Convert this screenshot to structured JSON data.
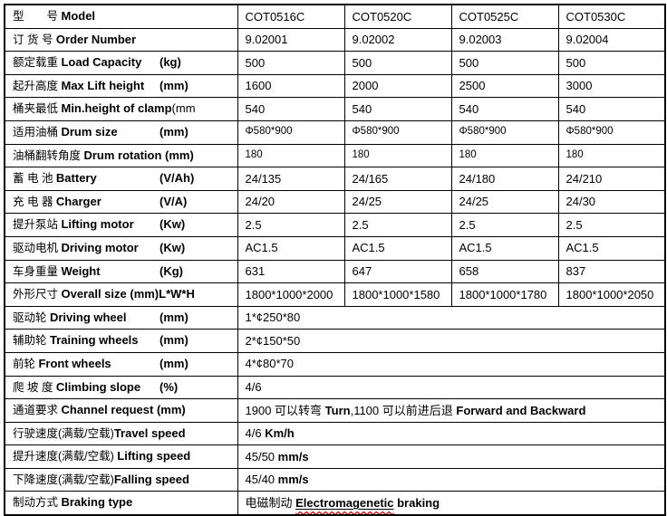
{
  "table": {
    "rows": [
      {
        "label": {
          "zh": "型　　号 ",
          "en": "Model"
        },
        "cells": [
          "COT0516C",
          "COT0520C",
          "COT0525C",
          "COT0530C"
        ]
      },
      {
        "label": {
          "zh": "订 货 号 ",
          "en": "Order Number"
        },
        "cells": [
          "9.02001",
          "9.02002",
          "9.02003",
          "9.02004"
        ]
      },
      {
        "label": {
          "zh": "额定载重 ",
          "en": "Load Capacity",
          "unit": "(kg)"
        },
        "cells": [
          "500",
          "500",
          "500",
          "500"
        ]
      },
      {
        "label": {
          "zh": "起升高度 ",
          "en": "Max Lift height",
          "unit": "(mm)"
        },
        "cells": [
          "1600",
          "2000",
          "2500",
          "3000"
        ]
      },
      {
        "label": {
          "zh": "桶夹最低 ",
          "en": "Min.height of clamp",
          "tail": "(mm"
        },
        "cells": [
          "540",
          "540",
          "540",
          "540"
        ]
      },
      {
        "label": {
          "zh": "适用油桶 ",
          "en": "Drum size",
          "unit": "(mm)"
        },
        "cells": [
          "Φ580*900",
          "Φ580*900",
          "Φ580*900",
          "Φ580*900"
        ]
      },
      {
        "label": {
          "zh": "油桶翻转角度 ",
          "en": "Drum rotation (mm)"
        },
        "cells": [
          "180",
          "180",
          "180",
          "180"
        ]
      },
      {
        "label": {
          "zh": "蓄 电 池 ",
          "en": "Battery",
          "unit": "(V/Ah)"
        },
        "cells": [
          "24/135",
          "24/165",
          "24/180",
          "24/210"
        ]
      },
      {
        "label": {
          "zh": "充 电 器 ",
          "en": "Charger",
          "unit": "(V/A)"
        },
        "cells": [
          "24/20",
          "24/25",
          "24/25",
          "24/30"
        ]
      },
      {
        "label": {
          "zh": "提升泵站 ",
          "en": "Lifting motor",
          "unit": "(Kw)"
        },
        "cells": [
          "2.5",
          "2.5",
          "2.5",
          "2.5"
        ]
      },
      {
        "label": {
          "zh": "驱动电机 ",
          "en": "Driving motor",
          "unit": "(Kw)"
        },
        "cells": [
          "AC1.5",
          "AC1.5",
          "AC1.5",
          "AC1.5"
        ]
      },
      {
        "label": {
          "zh": "车身重量 ",
          "en": "Weight",
          "unit": "(Kg)"
        },
        "cells": [
          "631",
          "647",
          "658",
          "837"
        ]
      },
      {
        "label": {
          "zh": "外形尺寸 ",
          "en": "Overall size (mm)L*W*H"
        },
        "cells": [
          "1800*1000*2000",
          "1800*1000*1580",
          "1800*1000*1780",
          "1800*1000*2050"
        ]
      },
      {
        "label": {
          "zh": "驱动轮 ",
          "en": "Driving wheel",
          "unit": "(mm)"
        },
        "merged": [
          {
            "t": "1*¢250*80",
            "b": false
          }
        ]
      },
      {
        "label": {
          "zh": "辅助轮 ",
          "en": "Training wheels",
          "unit": "(mm)"
        },
        "merged": [
          {
            "t": "2*¢150*50",
            "b": false
          }
        ]
      },
      {
        "label": {
          "zh": "前轮 ",
          "en": "Front wheels",
          "unit": "(mm)"
        },
        "merged": [
          {
            "t": "4*¢80*70",
            "b": false
          }
        ]
      },
      {
        "label": {
          "zh": "爬 坡 度 ",
          "en": "Climbing slope",
          "unit": "(%)"
        },
        "merged": [
          {
            "t": "4/6",
            "b": false
          }
        ]
      },
      {
        "label": {
          "zh": "通道要求 ",
          "en": "Channel request (mm)"
        },
        "merged": [
          {
            "t": "1900 可以转弯 ",
            "b": false
          },
          {
            "t": "Turn",
            "b": true
          },
          {
            "t": ",1100 可以前进后退 ",
            "b": false
          },
          {
            "t": "Forward and Backward",
            "b": true
          }
        ]
      },
      {
        "label": {
          "zh": "行驶速度(满载/空载)",
          "en": "Travel speed"
        },
        "merged": [
          {
            "t": "4/6 ",
            "b": false
          },
          {
            "t": "Km/h",
            "b": true
          }
        ]
      },
      {
        "label": {
          "zh": "提升速度(满载/空载) ",
          "en": "Lifting speed"
        },
        "merged": [
          {
            "t": "45/50 ",
            "b": false
          },
          {
            "t": "mm/s",
            "b": true
          }
        ]
      },
      {
        "label": {
          "zh": "下降速度(满载/空载)",
          "en": "Falling speed"
        },
        "merged": [
          {
            "t": "45/40 ",
            "b": false
          },
          {
            "t": "mm/s",
            "b": true
          }
        ]
      },
      {
        "label": {
          "zh": "制动方式 ",
          "en": "Braking type"
        },
        "merged": [
          {
            "t": "电磁制动 ",
            "b": false
          },
          {
            "t": "Electromagenetic",
            "b": true,
            "mis": true
          },
          {
            "t": " braking",
            "b": true
          }
        ]
      }
    ],
    "status_colors": {
      "text": "#000000",
      "border": "#000000",
      "spellcheck_squiggle": "#d00000",
      "background": "#ffffff"
    }
  }
}
